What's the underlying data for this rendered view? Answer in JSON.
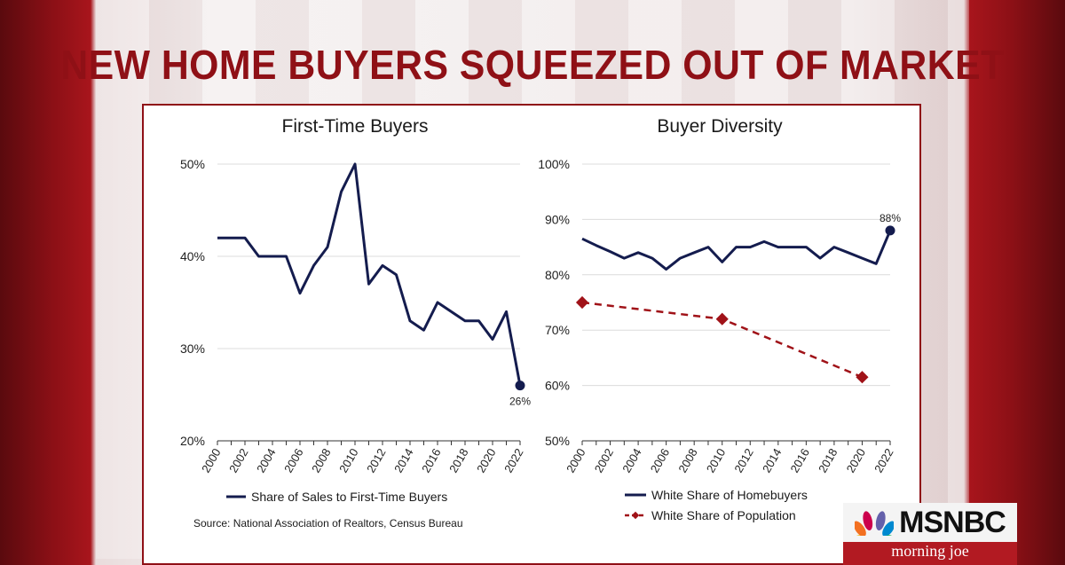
{
  "headline": "NEW HOME BUYERS SQUEEZED OUT OF MARKET",
  "source": "Source: National Association of Realtors, Census Bureau",
  "branding": {
    "network": "MSNBC",
    "show": "morning joe",
    "icon": "peacock-icon"
  },
  "colors": {
    "navy": "#141c4e",
    "red": "#a01218",
    "brand_red": "#8f1016"
  },
  "chart_data": [
    {
      "type": "line",
      "title": "First-Time Buyers",
      "x": [
        2000,
        2001,
        2002,
        2003,
        2004,
        2005,
        2006,
        2007,
        2008,
        2009,
        2010,
        2011,
        2012,
        2013,
        2014,
        2015,
        2016,
        2017,
        2018,
        2019,
        2020,
        2021,
        2022
      ],
      "xticks": [
        "2000",
        "2002",
        "2004",
        "2006",
        "2008",
        "2010",
        "2012",
        "2014",
        "2016",
        "2018",
        "2020",
        "2022"
      ],
      "yticks": [
        "20%",
        "30%",
        "40%",
        "50%"
      ],
      "ylim": [
        20,
        50
      ],
      "grid": true,
      "legend": "bottom",
      "series": [
        {
          "name": "Share of Sales to First-Time Buyers",
          "color": "#141c4e",
          "values": [
            42,
            42,
            42,
            40,
            40,
            40,
            36,
            39,
            41,
            47,
            50,
            37,
            39,
            38,
            33,
            32,
            35,
            34,
            33,
            33,
            31,
            34,
            26
          ],
          "end_label": "26%"
        }
      ]
    },
    {
      "type": "line",
      "title": "Buyer Diversity",
      "x": [
        2000,
        2001,
        2002,
        2003,
        2004,
        2005,
        2006,
        2007,
        2008,
        2009,
        2010,
        2011,
        2012,
        2013,
        2014,
        2015,
        2016,
        2017,
        2018,
        2019,
        2020,
        2021,
        2022
      ],
      "xticks": [
        "2000",
        "2002",
        "2004",
        "2006",
        "2008",
        "2010",
        "2012",
        "2014",
        "2016",
        "2018",
        "2020",
        "2022"
      ],
      "yticks": [
        "50%",
        "60%",
        "70%",
        "80%",
        "90%",
        "100%"
      ],
      "ylim": [
        50,
        100
      ],
      "grid": true,
      "legend": "bottom",
      "series": [
        {
          "name": "White Share of Homebuyers",
          "color": "#141c4e",
          "values": [
            86.5,
            85.3,
            84.2,
            83,
            84,
            83,
            81,
            83,
            84,
            85,
            82.3,
            85,
            85,
            86,
            85,
            85,
            85,
            83,
            85,
            84,
            83,
            82,
            88
          ],
          "end_label": "88%"
        },
        {
          "name": "White Share of Population",
          "color": "#a01218",
          "dashed": true,
          "points": [
            [
              2000,
              75
            ],
            [
              2010,
              72
            ],
            [
              2020,
              61.5
            ]
          ]
        }
      ]
    }
  ]
}
